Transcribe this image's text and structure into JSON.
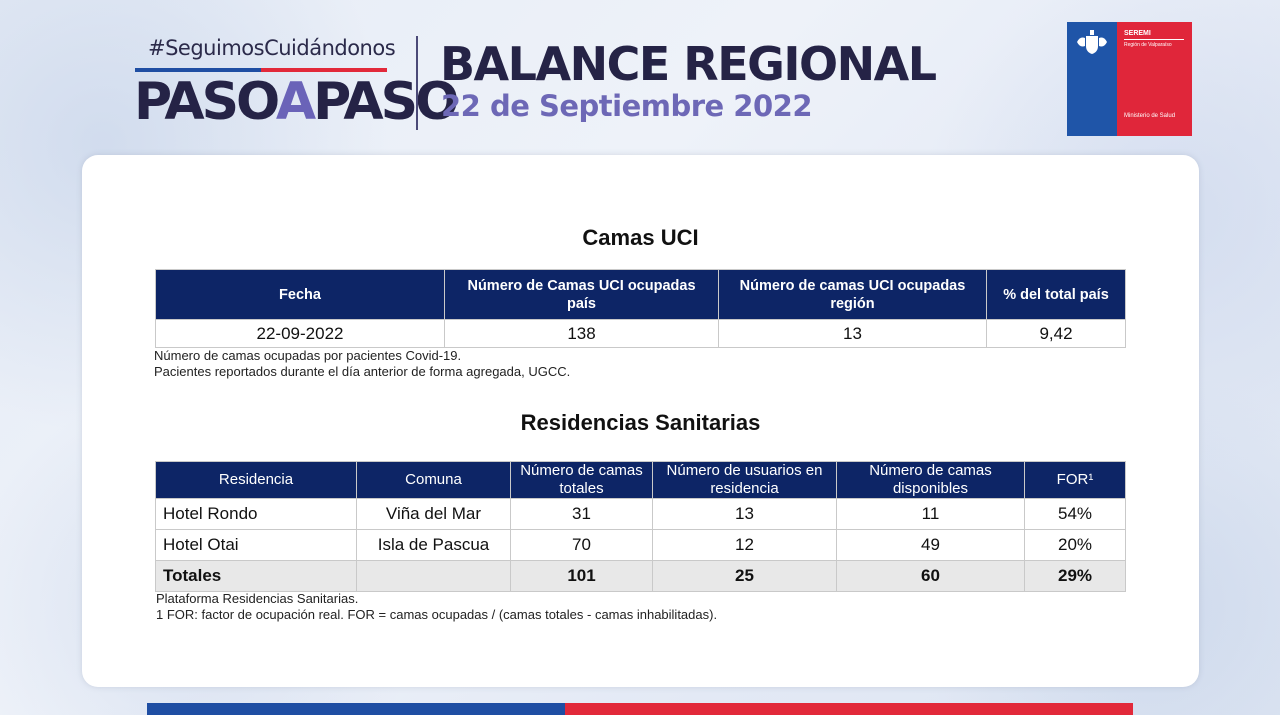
{
  "header": {
    "hashtag": "#SeguimosCuidándonos",
    "logo_paso1": "PASO",
    "logo_a": "A",
    "logo_paso2": "PASO",
    "title": "BALANCE REGIONAL",
    "date": "22 de Septiembre 2022"
  },
  "seremi_logo": {
    "line1": "SEREMI",
    "line2": "Región de Valparaíso",
    "line3": "Ministerio de Salud",
    "colors": {
      "blue": "#1f55a8",
      "red": "#e0263a"
    }
  },
  "uci": {
    "title": "Camas UCI",
    "headers": [
      "Fecha",
      "Número de Camas UCI ocupadas país",
      "Número de camas UCI ocupadas región",
      "% del total país"
    ],
    "row": [
      "22-09-2022",
      "138",
      "13",
      "9,42"
    ],
    "notes": [
      "Número de camas ocupadas por pacientes Covid-19.",
      "Pacientes reportados durante el día anterior de forma agregada, UGCC."
    ]
  },
  "residencias": {
    "title": "Residencias Sanitarias",
    "headers": [
      "Residencia",
      "Comuna",
      "Número de camas totales",
      "Número de usuarios en residencia",
      "Número de camas disponibles",
      "FOR¹"
    ],
    "rows": [
      [
        "Hotel Rondo",
        "Viña del Mar",
        "31",
        "13",
        "11",
        "54%"
      ],
      [
        "Hotel Otai",
        "Isla de Pascua",
        "70",
        "12",
        "49",
        "20%"
      ]
    ],
    "totals": [
      "Totales",
      "",
      "101",
      "25",
      "60",
      "29%"
    ],
    "notes": [
      "Plataforma Residencias Sanitarias.",
      "1 FOR: factor de ocupación real. FOR = camas ocupadas / (camas totales - camas inhabilitadas)."
    ]
  },
  "colors": {
    "header_navy": "#0d2566",
    "brand_blue": "#1f4ea3",
    "brand_red": "#e2293a",
    "accent_purple": "#6d68b6"
  }
}
